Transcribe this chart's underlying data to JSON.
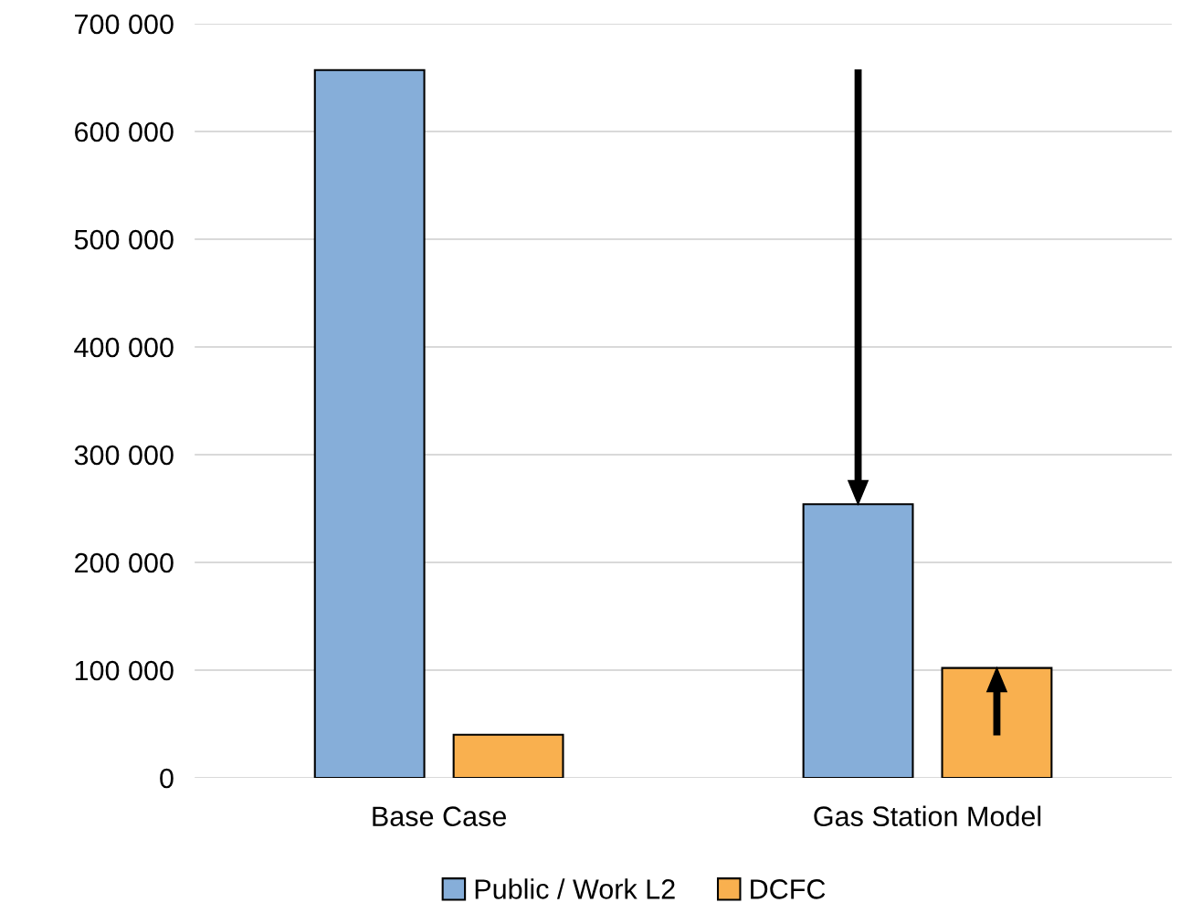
{
  "chart_data": {
    "type": "bar",
    "categories": [
      "Base Case",
      "Gas Station Model"
    ],
    "series": [
      {
        "name": "Public / Work L2",
        "color": "#86aed9",
        "values": [
          657000,
          254000
        ]
      },
      {
        "name": "DCFC",
        "color": "#f9b04f",
        "values": [
          40000,
          102000
        ]
      }
    ],
    "ylim": [
      0,
      700000
    ],
    "yticks": [
      {
        "value": 0,
        "label": "0"
      },
      {
        "value": 100000,
        "label": "100 000"
      },
      {
        "value": 200000,
        "label": "200 000"
      },
      {
        "value": 300000,
        "label": "300 000"
      },
      {
        "value": 400000,
        "label": "400 000"
      },
      {
        "value": 500000,
        "label": "500 000"
      },
      {
        "value": 600000,
        "label": "600 000"
      },
      {
        "value": 700000,
        "label": "700 000"
      }
    ],
    "grid": "y",
    "legend": "bottom"
  }
}
